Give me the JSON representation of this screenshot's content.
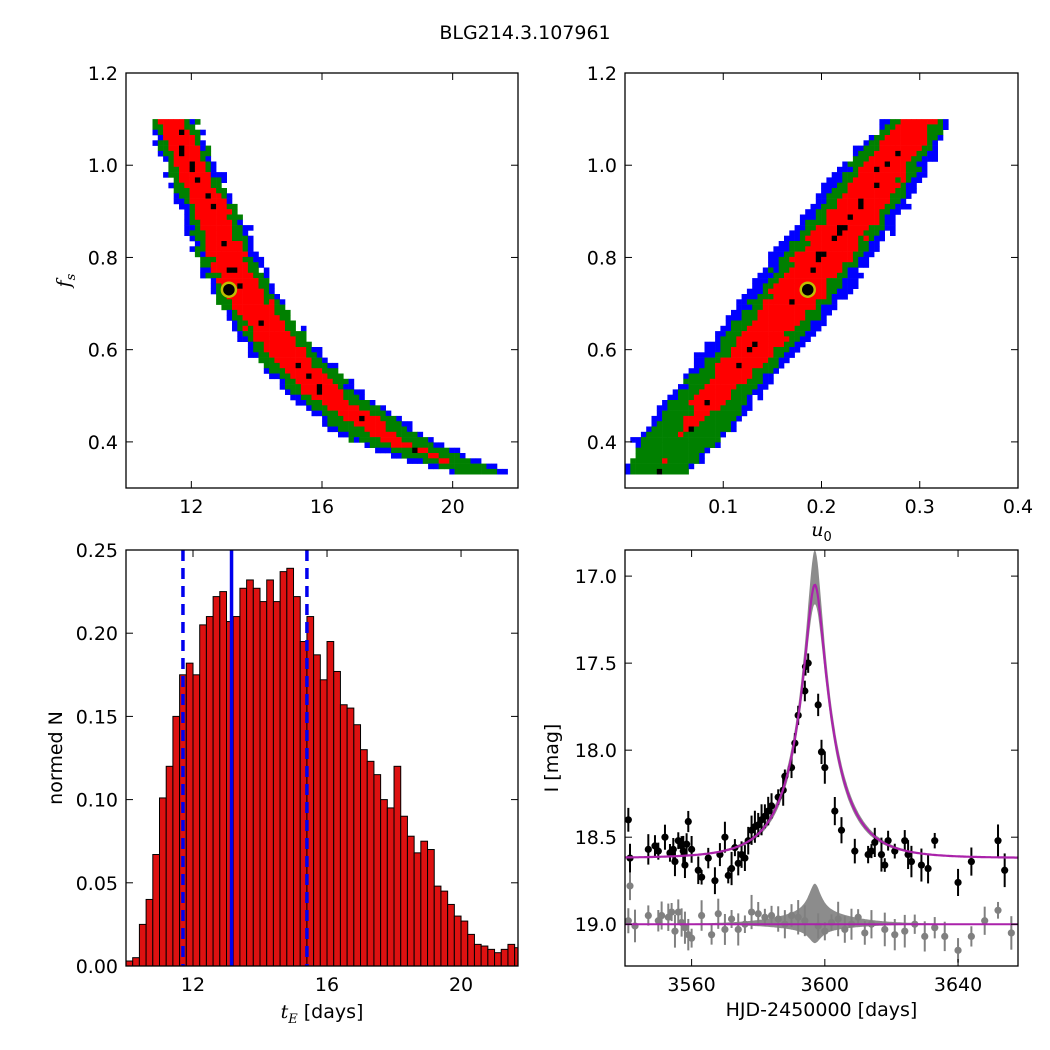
{
  "figure_title": "BLG214.3.107961",
  "chart_data": [
    {
      "id": "fs-vs-tE",
      "type": "heatmap",
      "description_levels": [
        "blue",
        "green",
        "red",
        "black"
      ],
      "xlabel": "",
      "ylabel": "f_s",
      "xlim": [
        10,
        22
      ],
      "ylim": [
        0.3,
        1.2
      ],
      "xticks": [
        12,
        16,
        20
      ],
      "xtick_labels": [
        "12",
        "16",
        "20"
      ],
      "yticks": [
        0.4,
        0.6,
        0.8,
        1.0,
        1.2
      ],
      "ytick_labels": [
        "0.4",
        "0.6",
        "0.8",
        "1.0",
        "1.2"
      ],
      "colors": {
        "level1": "#0000ff",
        "level2": "#008000",
        "level3": "#ff0000",
        "best": "#000000",
        "marker_edge": "#bfbf00"
      },
      "best_fit": {
        "x": 13.15,
        "y": 0.73
      },
      "contour_curve": {
        "y_values": [
          1.1,
          1.0,
          0.9,
          0.8,
          0.7,
          0.6,
          0.5,
          0.4,
          0.33
        ],
        "x_center": [
          11.4,
          11.95,
          12.6,
          13.1,
          13.8,
          14.8,
          16.1,
          18.2,
          20.9
        ],
        "half_width_blue": [
          0.75,
          0.8,
          0.9,
          0.95,
          1.0,
          1.05,
          1.15,
          1.3,
          0.9
        ],
        "half_width_green": [
          0.65,
          0.7,
          0.78,
          0.82,
          0.88,
          0.92,
          1.0,
          1.1,
          0.6
        ],
        "half_width_red": [
          0.42,
          0.45,
          0.5,
          0.55,
          0.58,
          0.62,
          0.6,
          0.35,
          0.0
        ]
      }
    },
    {
      "id": "fs-vs-u0",
      "type": "heatmap",
      "xlabel": "u_0",
      "ylabel": "",
      "xlim": [
        0,
        0.4
      ],
      "ylim": [
        0.3,
        1.2
      ],
      "xticks": [
        0.1,
        0.2,
        0.3,
        0.4
      ],
      "xtick_labels": [
        "0.1",
        "0.2",
        "0.3",
        "0.4"
      ],
      "yticks": [
        0.4,
        0.6,
        0.8,
        1.0,
        1.2
      ],
      "ytick_labels": [
        "0.4",
        "0.6",
        "0.8",
        "1.0",
        "1.2"
      ],
      "best_fit": {
        "x": 0.186,
        "y": 0.73
      },
      "contour_curve": {
        "y_values": [
          0.33,
          0.4,
          0.5,
          0.6,
          0.7,
          0.8,
          0.9,
          1.0,
          1.1
        ],
        "x_center": [
          0.03,
          0.055,
          0.09,
          0.13,
          0.168,
          0.2,
          0.235,
          0.265,
          0.3
        ],
        "half_width_blue": [
          0.03,
          0.045,
          0.045,
          0.05,
          0.05,
          0.052,
          0.05,
          0.045,
          0.035
        ],
        "half_width_green": [
          0.028,
          0.04,
          0.037,
          0.038,
          0.039,
          0.04,
          0.038,
          0.035,
          0.028
        ],
        "half_width_red": [
          0.0,
          0.0,
          0.018,
          0.024,
          0.026,
          0.028,
          0.027,
          0.024,
          0.018
        ]
      }
    },
    {
      "id": "tE-histogram",
      "type": "bar",
      "xlabel": "t_E [days]",
      "xlabel_math": "t",
      "xlabel_sub": "E",
      "xlabel_unit": " [days]",
      "ylabel": "normed N",
      "xlim": [
        10,
        21.7
      ],
      "ylim": [
        0,
        0.25
      ],
      "xticks": [
        12,
        16,
        20
      ],
      "xtick_labels": [
        "12",
        "16",
        "20"
      ],
      "yticks": [
        0.0,
        0.05,
        0.1,
        0.15,
        0.2,
        0.25
      ],
      "ytick_labels": [
        "0.00",
        "0.05",
        "0.10",
        "0.15",
        "0.20",
        "0.25"
      ],
      "bin_start": 10.0,
      "bin_width": 0.2,
      "values": [
        0.003,
        0.005,
        0.025,
        0.04,
        0.067,
        0.101,
        0.12,
        0.15,
        0.175,
        0.182,
        0.175,
        0.205,
        0.21,
        0.222,
        0.225,
        0.207,
        0.21,
        0.227,
        0.232,
        0.227,
        0.219,
        0.232,
        0.219,
        0.237,
        0.239,
        0.222,
        0.195,
        0.21,
        0.187,
        0.172,
        0.195,
        0.177,
        0.157,
        0.155,
        0.145,
        0.13,
        0.123,
        0.115,
        0.1,
        0.095,
        0.12,
        0.09,
        0.078,
        0.068,
        0.075,
        0.07,
        0.048,
        0.045,
        0.037,
        0.03,
        0.027,
        0.019,
        0.013,
        0.012,
        0.01,
        0.008,
        0.01,
        0.013,
        0.011,
        0.006,
        0.003,
        0.002,
        0.001
      ],
      "colors": {
        "bar": "#dd1111",
        "edge": "#000000",
        "lines": "#0000ee"
      },
      "median": 13.15,
      "interval": [
        11.7,
        15.4
      ]
    },
    {
      "id": "lightcurve",
      "type": "scatter",
      "xlabel": "HJD-2450000 [days]",
      "ylabel": "I [mag]",
      "xlim": [
        3540,
        3658
      ],
      "ylim": [
        19.24,
        16.85
      ],
      "y_inverted": true,
      "xticks": [
        3560,
        3600,
        3640
      ],
      "xtick_labels": [
        "3560",
        "3600",
        "3640"
      ],
      "yticks": [
        17.0,
        17.5,
        18.0,
        18.5,
        19.0
      ],
      "ytick_labels": [
        "17.0",
        "17.5",
        "18.0",
        "18.5",
        "19.0"
      ],
      "model": {
        "t0": 3597.0,
        "tE": 13.15,
        "u0": 0.186,
        "fs": 0.73,
        "baseline": 18.62,
        "residual_baseline": 19.0
      },
      "colors": {
        "data": "#000000",
        "residual": "#808080",
        "model": "#aa22aa",
        "band": "#808080"
      },
      "series": [
        {
          "name": "",
          "x": [
            3541,
            3541.5,
            3547,
            3549,
            3550,
            3552,
            3553.5,
            3554.5,
            3555,
            3556,
            3557,
            3557.5,
            3558,
            3558.5,
            3559,
            3560,
            3562,
            3563,
            3565,
            3567,
            3568.5,
            3570,
            3571,
            3572,
            3573,
            3574,
            3575,
            3576,
            3577,
            3578,
            3579,
            3580,
            3581,
            3582,
            3583,
            3584,
            3586,
            3587.5,
            3588,
            3590,
            3591,
            3592,
            3594,
            3594.2,
            3595,
            3598,
            3599,
            3600,
            3603,
            3605,
            3609,
            3613,
            3614,
            3615,
            3617,
            3618,
            3619,
            3621,
            3624,
            3625,
            3626,
            3629,
            3631,
            3633,
            3640,
            3644,
            3652,
            3654
          ],
          "y": [
            18.4,
            18.62,
            18.57,
            18.55,
            18.58,
            18.5,
            18.59,
            18.57,
            18.64,
            18.52,
            18.55,
            18.58,
            18.66,
            18.54,
            18.41,
            18.57,
            18.69,
            18.73,
            18.62,
            18.75,
            18.6,
            18.5,
            18.72,
            18.68,
            18.56,
            18.65,
            18.6,
            18.62,
            18.52,
            18.46,
            18.44,
            18.43,
            18.4,
            18.38,
            18.35,
            18.32,
            18.27,
            18.23,
            18.15,
            18.1,
            17.96,
            17.8,
            17.66,
            17.52,
            17.5,
            17.74,
            18.01,
            18.1,
            18.35,
            18.46,
            18.58,
            18.6,
            18.58,
            18.53,
            18.6,
            18.66,
            18.52,
            18.58,
            18.52,
            18.6,
            18.64,
            18.66,
            18.68,
            18.52,
            18.76,
            18.64,
            18.52,
            18.69
          ]
        },
        {
          "name": "",
          "x": [
            3541,
            3541.5,
            3543,
            3547,
            3550,
            3551,
            3553,
            3554,
            3555,
            3556,
            3557,
            3558,
            3559,
            3560,
            3563,
            3566,
            3568,
            3570,
            3572,
            3574,
            3576,
            3578,
            3580,
            3582,
            3584,
            3586,
            3588,
            3590,
            3592,
            3594,
            3598,
            3600,
            3602,
            3604,
            3606,
            3608,
            3610,
            3612,
            3614,
            3618,
            3621,
            3624,
            3627,
            3630,
            3633,
            3636,
            3640,
            3644,
            3648,
            3652,
            3656
          ],
          "y": [
            18.98,
            18.78,
            19.01,
            18.95,
            18.98,
            18.95,
            18.96,
            18.93,
            19.04,
            18.93,
            18.99,
            19.02,
            19.06,
            19.08,
            18.95,
            19.06,
            18.94,
            19.03,
            18.97,
            19.03,
            19.0,
            18.93,
            18.94,
            18.96,
            18.95,
            18.97,
            19.0,
            18.95,
            18.96,
            18.98,
            19.01,
            19.04,
            18.99,
            18.97,
            19.03,
            19.0,
            18.96,
            19.05,
            19.0,
            19.03,
            19.06,
            19.04,
            19.0,
            19.07,
            19.02,
            19.07,
            19.15,
            19.07,
            18.98,
            18.92,
            19.05
          ]
        }
      ]
    }
  ]
}
